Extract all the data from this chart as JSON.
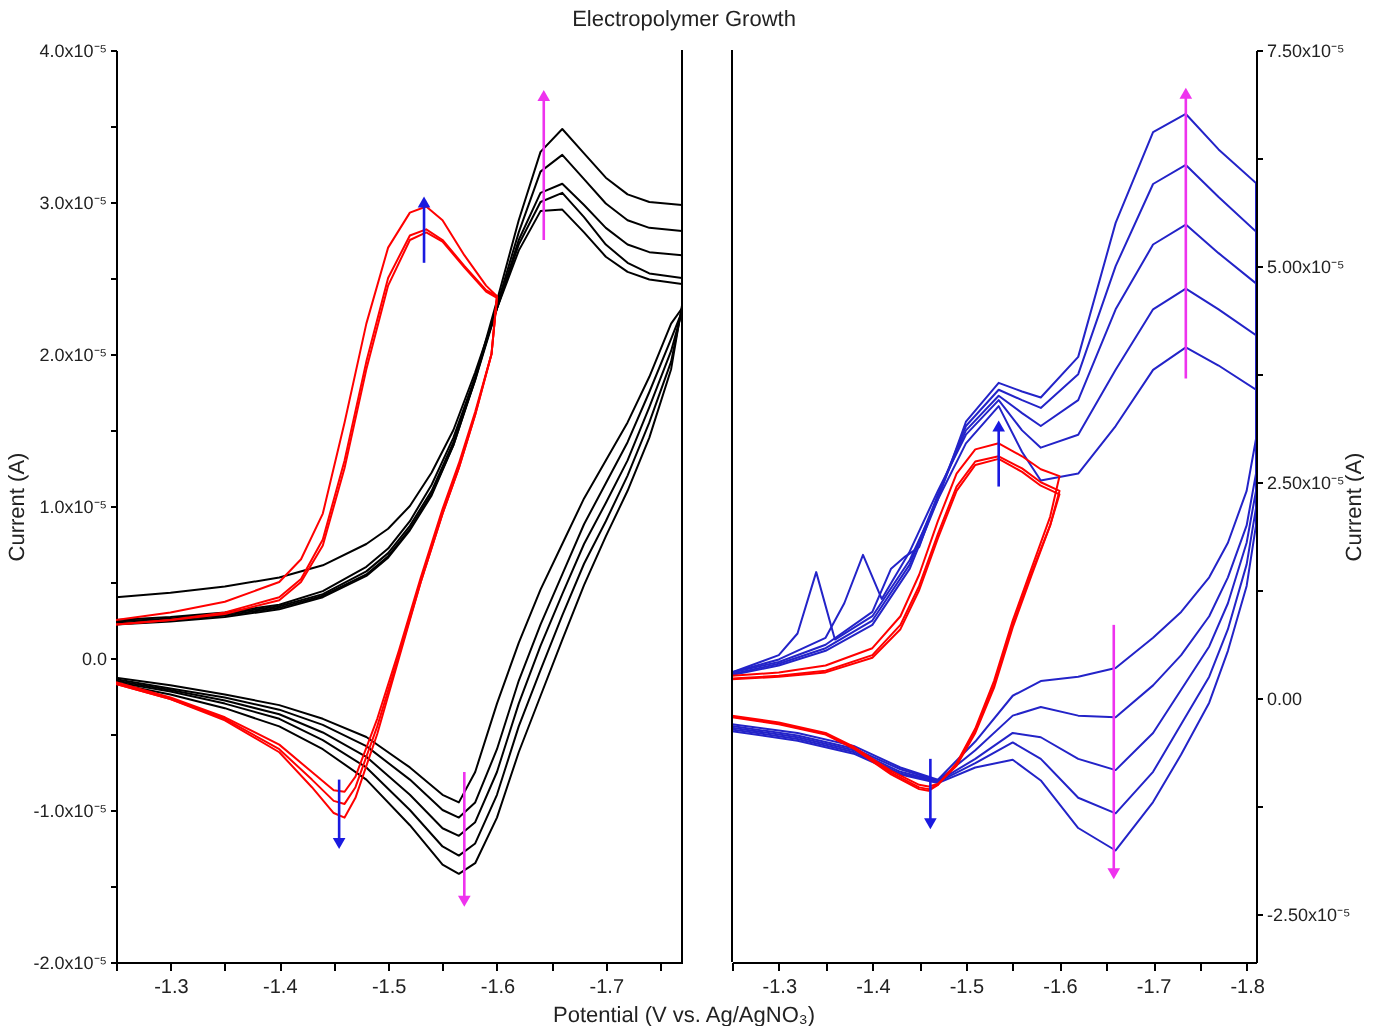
{
  "chart_data": [
    {
      "type": "line",
      "title": "Electropolymer Growth",
      "xlabel": "Potential (V vs. Ag/AgNO₃)",
      "ylabel": "Current (A)",
      "xlim": [
        -1.25,
        -1.77
      ],
      "xticks": [
        {
          "value": -1.25,
          "label": null
        },
        -1.3,
        {
          "value": -1.35,
          "label": null
        },
        -1.4,
        {
          "value": -1.45,
          "label": null
        },
        -1.5,
        {
          "value": -1.55,
          "label": null
        },
        -1.6,
        {
          "value": -1.65,
          "label": null
        },
        -1.7,
        {
          "value": -1.75,
          "label": null
        }
      ],
      "ylim": [
        -2e-05,
        4e-05
      ],
      "yticks": [
        {
          "value": -2e-05,
          "label": "-2.0x10⁻⁵"
        },
        {
          "value": -1.5e-05,
          "label": null
        },
        {
          "value": -1e-05,
          "label": "-1.0x10⁻⁵"
        },
        {
          "value": -5e-06,
          "label": null
        },
        {
          "value": 0,
          "label": "0.0"
        },
        {
          "value": 5e-06,
          "label": null
        },
        {
          "value": 1e-05,
          "label": "1.0x10⁻⁵"
        },
        {
          "value": 1.5e-05,
          "label": null
        },
        {
          "value": 2e-05,
          "label": "2.0x10⁻⁵"
        },
        {
          "value": 2.5e-05,
          "label": null
        },
        {
          "value": 3e-05,
          "label": "3.0x10⁻⁵"
        },
        {
          "value": 3.5e-05,
          "label": null
        },
        {
          "value": 4e-05,
          "label": "4.0x10⁻⁵"
        }
      ],
      "series": [
        {
          "color": "#000000",
          "x": [
            -1.25,
            -1.3,
            -1.35,
            -1.4,
            -1.44,
            -1.48,
            -1.5,
            -1.52,
            -1.54,
            -1.56,
            -1.58,
            -1.6,
            -1.62,
            -1.64,
            -1.66,
            -1.68,
            -1.7,
            -1.72,
            -1.74,
            -1.77,
            -1.77,
            -1.76,
            -1.74,
            -1.72,
            -1.7,
            -1.68,
            -1.66,
            -1.64,
            -1.62,
            -1.6,
            -1.58,
            -1.565,
            -1.55,
            -1.52,
            -1.48,
            -1.44,
            -1.4,
            -1.35,
            -1.3,
            -1.25
          ],
          "values": [
            4e-06,
            4.3e-06,
            4.7e-06,
            5.3e-06,
            6.1e-06,
            7.5e-06,
            8.5e-06,
            1e-05,
            1.22e-05,
            1.5e-05,
            1.88e-05,
            2.3e-05,
            2.68e-05,
            2.94e-05,
            2.95e-05,
            2.8e-05,
            2.64e-05,
            2.54e-05,
            2.49e-05,
            2.46e-05,
            2.3e-05,
            2.2e-05,
            1.85e-05,
            1.55e-05,
            1.3e-05,
            1.05e-05,
            7.5e-06,
            4.5e-06,
            1e-06,
            -3e-06,
            -7.5e-06,
            -9.5e-06,
            -9e-06,
            -7.2e-06,
            -5.2e-06,
            -4e-06,
            -3.1e-06,
            -2.4e-06,
            -1.8e-06,
            -1.3e-06
          ]
        },
        {
          "color": "#000000",
          "x": [
            -1.25,
            -1.3,
            -1.35,
            -1.4,
            -1.44,
            -1.48,
            -1.5,
            -1.52,
            -1.54,
            -1.56,
            -1.58,
            -1.6,
            -1.62,
            -1.64,
            -1.66,
            -1.68,
            -1.7,
            -1.72,
            -1.74,
            -1.77,
            -1.77,
            -1.76,
            -1.74,
            -1.72,
            -1.7,
            -1.68,
            -1.66,
            -1.64,
            -1.62,
            -1.6,
            -1.58,
            -1.565,
            -1.55,
            -1.52,
            -1.48,
            -1.44,
            -1.4,
            -1.35,
            -1.3,
            -1.25
          ],
          "values": [
            2.5e-06,
            2.7e-06,
            3e-06,
            3.5e-06,
            4.4e-06,
            6e-06,
            7.2e-06,
            9e-06,
            1.14e-05,
            1.45e-05,
            1.85e-05,
            2.3e-05,
            2.72e-05,
            3e-05,
            3.06e-05,
            2.9e-05,
            2.72e-05,
            2.6e-05,
            2.53e-05,
            2.5e-05,
            2.28e-05,
            2.1e-05,
            1.75e-05,
            1.42e-05,
            1.15e-05,
            8.8e-06,
            5.5e-06,
            2.2e-06,
            -1.5e-06,
            -6e-06,
            -9.5e-06,
            -1.05e-05,
            -1e-05,
            -8e-06,
            -5.8e-06,
            -4.4e-06,
            -3.4e-06,
            -2.6e-06,
            -2e-06,
            -1.4e-06
          ]
        },
        {
          "color": "#000000",
          "x": [
            -1.25,
            -1.3,
            -1.35,
            -1.4,
            -1.44,
            -1.48,
            -1.5,
            -1.52,
            -1.54,
            -1.56,
            -1.58,
            -1.6,
            -1.62,
            -1.64,
            -1.66,
            -1.68,
            -1.7,
            -1.72,
            -1.74,
            -1.77,
            -1.77,
            -1.76,
            -1.74,
            -1.72,
            -1.7,
            -1.68,
            -1.66,
            -1.64,
            -1.62,
            -1.6,
            -1.58,
            -1.565,
            -1.55,
            -1.52,
            -1.48,
            -1.44,
            -1.4,
            -1.35,
            -1.3,
            -1.25
          ],
          "values": [
            2.4e-06,
            2.6e-06,
            2.9e-06,
            3.4e-06,
            4.2e-06,
            5.7e-06,
            6.9e-06,
            8.7e-06,
            1.1e-05,
            1.42e-05,
            1.83e-05,
            2.3e-05,
            2.75e-05,
            3.06e-05,
            3.12e-05,
            2.98e-05,
            2.83e-05,
            2.72e-05,
            2.67e-05,
            2.65e-05,
            2.28e-05,
            2.02e-05,
            1.65e-05,
            1.3e-05,
            1.02e-05,
            7.5e-06,
            4.2e-06,
            8e-07,
            -3e-06,
            -7.5e-06,
            -1.08e-05,
            -1.17e-05,
            -1.12e-05,
            -9e-06,
            -6.5e-06,
            -4.9e-06,
            -3.7e-06,
            -2.8e-06,
            -2.1e-06,
            -1.5e-06
          ]
        },
        {
          "color": "#000000",
          "x": [
            -1.25,
            -1.3,
            -1.35,
            -1.4,
            -1.44,
            -1.48,
            -1.5,
            -1.52,
            -1.54,
            -1.56,
            -1.58,
            -1.6,
            -1.62,
            -1.64,
            -1.66,
            -1.68,
            -1.7,
            -1.72,
            -1.74,
            -1.77,
            -1.77,
            -1.76,
            -1.74,
            -1.72,
            -1.7,
            -1.68,
            -1.66,
            -1.64,
            -1.62,
            -1.6,
            -1.58,
            -1.565,
            -1.55,
            -1.52,
            -1.48,
            -1.44,
            -1.4,
            -1.35,
            -1.3,
            -1.25
          ],
          "values": [
            2.3e-06,
            2.5e-06,
            2.8e-06,
            3.3e-06,
            4.1e-06,
            5.5e-06,
            6.7e-06,
            8.5e-06,
            1.08e-05,
            1.4e-05,
            1.83e-05,
            2.32e-05,
            2.8e-05,
            3.2e-05,
            3.31e-05,
            3.15e-05,
            2.99e-05,
            2.88e-05,
            2.83e-05,
            2.81e-05,
            2.3e-05,
            1.95e-05,
            1.55e-05,
            1.2e-05,
            9e-06,
            6.2e-06,
            2.8e-06,
            -8e-07,
            -4.5e-06,
            -9e-06,
            -1.22e-05,
            -1.3e-05,
            -1.24e-05,
            -1e-05,
            -7.2e-06,
            -5.4e-06,
            -4e-06,
            -3e-06,
            -2.2e-06,
            -1.6e-06
          ]
        },
        {
          "color": "#000000",
          "x": [
            -1.25,
            -1.3,
            -1.35,
            -1.4,
            -1.44,
            -1.48,
            -1.5,
            -1.52,
            -1.54,
            -1.56,
            -1.58,
            -1.6,
            -1.62,
            -1.64,
            -1.66,
            -1.68,
            -1.7,
            -1.72,
            -1.74,
            -1.77,
            -1.77,
            -1.76,
            -1.74,
            -1.72,
            -1.7,
            -1.68,
            -1.66,
            -1.64,
            -1.62,
            -1.6,
            -1.58,
            -1.565,
            -1.55,
            -1.52,
            -1.48,
            -1.44,
            -1.4,
            -1.35,
            -1.3,
            -1.25
          ],
          "values": [
            2.2e-06,
            2.4e-06,
            2.7e-06,
            3.2e-06,
            4e-06,
            5.4e-06,
            6.6e-06,
            8.4e-06,
            1.07e-05,
            1.4e-05,
            1.84e-05,
            2.35e-05,
            2.88e-05,
            3.33e-05,
            3.48e-05,
            3.32e-05,
            3.16e-05,
            3.05e-05,
            3e-05,
            2.98e-05,
            2.32e-05,
            1.9e-05,
            1.45e-05,
            1.1e-05,
            8e-06,
            4.8e-06,
            1.2e-06,
            -2.5e-06,
            -6.2e-06,
            -1.05e-05,
            -1.35e-05,
            -1.42e-05,
            -1.36e-05,
            -1.1e-05,
            -8e-06,
            -6e-06,
            -4.5e-06,
            -3.3e-06,
            -2.4e-06,
            -1.7e-06
          ]
        },
        {
          "color": "#ff0000",
          "x": [
            -1.25,
            -1.3,
            -1.35,
            -1.4,
            -1.42,
            -1.44,
            -1.46,
            -1.48,
            -1.5,
            -1.52,
            -1.535,
            -1.55,
            -1.57,
            -1.59,
            -1.6,
            -1.6,
            -1.595,
            -1.58,
            -1.565,
            -1.55,
            -1.53,
            -1.51,
            -1.49,
            -1.47,
            -1.46,
            -1.45,
            -1.43,
            -1.4,
            -1.35,
            -1.3,
            -1.25
          ],
          "values": [
            2.5e-06,
            3e-06,
            3.7e-06,
            5e-06,
            6.5e-06,
            9.5e-06,
            1.55e-05,
            2.2e-05,
            2.7e-05,
            2.93e-05,
            2.97e-05,
            2.88e-05,
            2.65e-05,
            2.45e-05,
            2.38e-05,
            2.38e-05,
            2e-05,
            1.6e-05,
            1.25e-05,
            9.5e-06,
            5e-06,
            0,
            -5e-06,
            -9.2e-06,
            -1.05e-05,
            -1.02e-05,
            -8.5e-06,
            -6.2e-06,
            -4.1e-06,
            -2.7e-06,
            -1.7e-06
          ]
        },
        {
          "color": "#ff0000",
          "x": [
            -1.25,
            -1.3,
            -1.35,
            -1.4,
            -1.42,
            -1.44,
            -1.46,
            -1.48,
            -1.5,
            -1.52,
            -1.535,
            -1.55,
            -1.57,
            -1.59,
            -1.6,
            -1.6,
            -1.595,
            -1.58,
            -1.565,
            -1.55,
            -1.53,
            -1.51,
            -1.49,
            -1.47,
            -1.46,
            -1.45,
            -1.43,
            -1.4,
            -1.35,
            -1.3,
            -1.25
          ],
          "values": [
            2.2e-06,
            2.5e-06,
            3e-06,
            4e-06,
            5.2e-06,
            7.8e-06,
            1.3e-05,
            1.95e-05,
            2.5e-05,
            2.78e-05,
            2.82e-05,
            2.75e-05,
            2.58e-05,
            2.42e-05,
            2.38e-05,
            2.38e-05,
            2e-05,
            1.6e-05,
            1.25e-05,
            9.5e-06,
            5e-06,
            2e-07,
            -4.5e-06,
            -8.5e-06,
            -9.6e-06,
            -9.4e-06,
            -8e-06,
            -6e-06,
            -4e-06,
            -2.7e-06,
            -1.7e-06
          ]
        },
        {
          "color": "#ff0000",
          "x": [
            -1.25,
            -1.3,
            -1.35,
            -1.4,
            -1.42,
            -1.44,
            -1.46,
            -1.48,
            -1.5,
            -1.52,
            -1.535,
            -1.55,
            -1.57,
            -1.59,
            -1.6,
            -1.6,
            -1.595,
            -1.58,
            -1.565,
            -1.55,
            -1.53,
            -1.51,
            -1.49,
            -1.47,
            -1.46,
            -1.45,
            -1.43,
            -1.4,
            -1.35,
            -1.3,
            -1.25
          ],
          "values": [
            2.2e-06,
            2.5e-06,
            2.9e-06,
            3.8e-06,
            5e-06,
            7.4e-06,
            1.25e-05,
            1.9e-05,
            2.45e-05,
            2.75e-05,
            2.8e-05,
            2.74e-05,
            2.57e-05,
            2.41e-05,
            2.37e-05,
            2.37e-05,
            2e-05,
            1.62e-05,
            1.28e-05,
            9.8e-06,
            5.3e-06,
            5e-07,
            -4e-06,
            -7.8e-06,
            -8.8e-06,
            -8.7e-06,
            -7.5e-06,
            -5.7e-06,
            -3.9e-06,
            -2.6e-06,
            -1.6e-06
          ]
        }
      ]
    },
    {
      "type": "line",
      "y2label": "Current (A)",
      "xlim": [
        -1.25,
        -1.81
      ],
      "xticks": [
        {
          "value": -1.25,
          "label": null
        },
        -1.3,
        {
          "value": -1.35,
          "label": null
        },
        -1.4,
        {
          "value": -1.45,
          "label": null
        },
        -1.5,
        {
          "value": -1.55,
          "label": null
        },
        -1.6,
        {
          "value": -1.65,
          "label": null
        },
        -1.7,
        {
          "value": -1.75,
          "label": null
        },
        -1.8
      ],
      "y2lim": [
        -3.05e-05,
        7.5e-05
      ],
      "y2ticks": [
        {
          "value": -2.5e-05,
          "label": "-2.50x10⁻⁵"
        },
        {
          "value": -1.25e-05,
          "label": null
        },
        {
          "value": 0,
          "label": "0.00"
        },
        {
          "value": 1.25e-05,
          "label": null
        },
        {
          "value": 2.5e-05,
          "label": "2.50x10⁻⁵"
        },
        {
          "value": 3.75e-05,
          "label": null
        },
        {
          "value": 5e-05,
          "label": "5.00x10⁻⁵"
        },
        {
          "value": 6.25e-05,
          "label": null
        },
        {
          "value": 7.5e-05,
          "label": "7.50x10⁻⁵"
        }
      ],
      "series": [
        {
          "axis": "y2",
          "color": "#2323c8",
          "x": [
            -1.25,
            -1.3,
            -1.32,
            -1.34,
            -1.36,
            -1.4,
            -1.44,
            -1.47,
            -1.5,
            -1.535,
            -1.56,
            -1.58,
            -1.62,
            -1.66,
            -1.7,
            -1.735,
            -1.77,
            -1.81,
            -1.81,
            -1.8,
            -1.78,
            -1.76,
            -1.73,
            -1.7,
            -1.66,
            -1.62,
            -1.58,
            -1.55,
            -1.51,
            -1.47,
            -1.43,
            -1.38,
            -1.32,
            -1.25
          ],
          "values": [
            3e-06,
            5e-06,
            7.5e-06,
            1.46e-05,
            6.8e-06,
            9.5e-06,
            1.6e-05,
            2.3e-05,
            2.95e-05,
            3.38e-05,
            2.85e-05,
            2.52e-05,
            2.6e-05,
            3.15e-05,
            3.8e-05,
            4.06e-05,
            3.85e-05,
            3.57e-05,
            3e-05,
            2.4e-05,
            1.8e-05,
            1.4e-05,
            1e-05,
            7e-06,
            3.5e-06,
            2.5e-06,
            2e-06,
            3e-07,
            -5e-06,
            -9.4e-06,
            -8e-06,
            -5.5e-06,
            -4e-06,
            -3e-06
          ]
        },
        {
          "axis": "y2",
          "color": "#2323c8",
          "x": [
            -1.25,
            -1.3,
            -1.35,
            -1.37,
            -1.39,
            -1.41,
            -1.44,
            -1.47,
            -1.5,
            -1.535,
            -1.56,
            -1.58,
            -1.62,
            -1.66,
            -1.7,
            -1.735,
            -1.77,
            -1.81,
            -1.81,
            -1.8,
            -1.78,
            -1.76,
            -1.73,
            -1.7,
            -1.66,
            -1.62,
            -1.58,
            -1.55,
            -1.51,
            -1.47,
            -1.43,
            -1.38,
            -1.32,
            -1.25
          ],
          "values": [
            3e-06,
            4.5e-06,
            7e-06,
            1.1e-05,
            1.66e-05,
            1.15e-05,
            1.7e-05,
            2.4e-05,
            3.05e-05,
            3.45e-05,
            3.1e-05,
            2.9e-05,
            3.05e-05,
            3.8e-05,
            4.5e-05,
            4.74e-05,
            4.5e-05,
            4.2e-05,
            2.6e-05,
            2e-05,
            1.4e-05,
            9.5e-06,
            5e-06,
            1.5e-06,
            -2.2e-06,
            -2e-06,
            -1e-06,
            -2e-06,
            -6e-06,
            -9.5e-06,
            -8.2e-06,
            -5.8e-06,
            -4.3e-06,
            -3.2e-06
          ]
        },
        {
          "axis": "y2",
          "color": "#2323c8",
          "x": [
            -1.25,
            -1.3,
            -1.35,
            -1.4,
            -1.42,
            -1.435,
            -1.45,
            -1.47,
            -1.5,
            -1.535,
            -1.56,
            -1.58,
            -1.62,
            -1.66,
            -1.7,
            -1.735,
            -1.77,
            -1.81,
            -1.81,
            -1.8,
            -1.78,
            -1.76,
            -1.73,
            -1.7,
            -1.66,
            -1.62,
            -1.58,
            -1.55,
            -1.51,
            -1.47,
            -1.43,
            -1.38,
            -1.32,
            -1.25
          ],
          "values": [
            3e-06,
            4.2e-06,
            6.2e-06,
            1e-05,
            1.5e-05,
            1.64e-05,
            1.75e-05,
            2.35e-05,
            3.1e-05,
            3.5e-05,
            3.3e-05,
            3.15e-05,
            3.45e-05,
            4.5e-05,
            5.25e-05,
            5.48e-05,
            5.15e-05,
            4.8e-05,
            2.4e-05,
            1.8e-05,
            1.1e-05,
            6e-06,
            1e-06,
            -4e-06,
            -8.3e-06,
            -7e-06,
            -4.5e-06,
            -4e-06,
            -7e-06,
            -9.6e-06,
            -8.5e-06,
            -6e-06,
            -4.5e-06,
            -3.4e-06
          ]
        },
        {
          "axis": "y2",
          "color": "#2323c8",
          "x": [
            -1.25,
            -1.3,
            -1.35,
            -1.4,
            -1.44,
            -1.47,
            -1.5,
            -1.535,
            -1.56,
            -1.58,
            -1.62,
            -1.66,
            -1.7,
            -1.735,
            -1.77,
            -1.81,
            -1.81,
            -1.8,
            -1.78,
            -1.76,
            -1.73,
            -1.7,
            -1.66,
            -1.62,
            -1.58,
            -1.55,
            -1.51,
            -1.47,
            -1.43,
            -1.38,
            -1.32,
            -1.25
          ],
          "values": [
            2.8e-06,
            4e-06,
            5.8e-06,
            9e-06,
            1.55e-05,
            2.35e-05,
            3.15e-05,
            3.57e-05,
            3.45e-05,
            3.36e-05,
            3.75e-05,
            5e-05,
            5.95e-05,
            6.17e-05,
            5.8e-05,
            5.4e-05,
            2.2e-05,
            1.55e-05,
            8e-06,
            2.5e-06,
            -3e-06,
            -8.5e-06,
            -1.33e-05,
            -1.15e-05,
            -7e-06,
            -5.1e-06,
            -7.5e-06,
            -9.7e-06,
            -8.7e-06,
            -6.2e-06,
            -4.7e-06,
            -3.6e-06
          ]
        },
        {
          "axis": "y2",
          "color": "#2323c8",
          "x": [
            -1.25,
            -1.3,
            -1.35,
            -1.4,
            -1.44,
            -1.47,
            -1.5,
            -1.535,
            -1.56,
            -1.58,
            -1.62,
            -1.66,
            -1.7,
            -1.735,
            -1.77,
            -1.81,
            -1.81,
            -1.8,
            -1.78,
            -1.76,
            -1.73,
            -1.7,
            -1.66,
            -1.62,
            -1.58,
            -1.55,
            -1.51,
            -1.47,
            -1.43,
            -1.38,
            -1.32,
            -1.25
          ],
          "values": [
            2.7e-06,
            3.8e-06,
            5.5e-06,
            8.5e-06,
            1.5e-05,
            2.3e-05,
            3.2e-05,
            3.65e-05,
            3.55e-05,
            3.48e-05,
            3.95e-05,
            5.5e-05,
            6.55e-05,
            6.76e-05,
            6.35e-05,
            5.96e-05,
            2e-05,
            1.3e-05,
            5.5e-06,
            -5e-07,
            -6.5e-06,
            -1.2e-05,
            -1.76e-05,
            -1.5e-05,
            -9.5e-06,
            -7.1e-06,
            -8e-06,
            -9.8e-06,
            -8.8e-06,
            -6.4e-06,
            -4.9e-06,
            -3.8e-06
          ]
        },
        {
          "axis": "y2",
          "color": "#ff0000",
          "x": [
            -1.25,
            -1.3,
            -1.35,
            -1.4,
            -1.43,
            -1.45,
            -1.47,
            -1.49,
            -1.51,
            -1.535,
            -1.56,
            -1.58,
            -1.6,
            -1.6,
            -1.59,
            -1.57,
            -1.55,
            -1.53,
            -1.51,
            -1.49,
            -1.47,
            -1.46,
            -1.45,
            -1.42,
            -1.38,
            -1.35,
            -1.3,
            -1.25
          ],
          "values": [
            2.6e-06,
            3e-06,
            3.8e-06,
            5.8e-06,
            9.5e-06,
            1.43e-05,
            2.05e-05,
            2.6e-05,
            2.88e-05,
            2.95e-05,
            2.8e-05,
            2.65e-05,
            2.57e-05,
            2.57e-05,
            2.1e-05,
            1.5e-05,
            9e-06,
            2e-06,
            -3.5e-06,
            -7.5e-06,
            -1e-05,
            -1.07e-05,
            -1.05e-05,
            -8.8e-06,
            -5.8e-06,
            -4.2e-06,
            -3e-06,
            -2.2e-06
          ]
        },
        {
          "axis": "y2",
          "color": "#ff0000",
          "x": [
            -1.25,
            -1.3,
            -1.35,
            -1.4,
            -1.43,
            -1.45,
            -1.47,
            -1.49,
            -1.51,
            -1.535,
            -1.56,
            -1.58,
            -1.6,
            -1.6,
            -1.59,
            -1.57,
            -1.55,
            -1.53,
            -1.51,
            -1.49,
            -1.47,
            -1.46,
            -1.45,
            -1.42,
            -1.38,
            -1.35,
            -1.3,
            -1.25
          ],
          "values": [
            2.3e-06,
            2.6e-06,
            3.2e-06,
            5e-06,
            8.5e-06,
            1.3e-05,
            1.9e-05,
            2.45e-05,
            2.74e-05,
            2.8e-05,
            2.66e-05,
            2.5e-05,
            2.4e-05,
            2.4e-05,
            2e-05,
            1.45e-05,
            8.5e-06,
            1.5e-06,
            -3.8e-06,
            -7.6e-06,
            -1e-05,
            -1.05e-05,
            -1.03e-05,
            -8.6e-06,
            -5.7e-06,
            -4.1e-06,
            -2.9e-06,
            -2.1e-06
          ]
        },
        {
          "axis": "y2",
          "color": "#ff0000",
          "x": [
            -1.25,
            -1.3,
            -1.35,
            -1.4,
            -1.43,
            -1.45,
            -1.47,
            -1.49,
            -1.51,
            -1.535,
            -1.56,
            -1.58,
            -1.6,
            -1.6,
            -1.59,
            -1.57,
            -1.55,
            -1.53,
            -1.51,
            -1.49,
            -1.47,
            -1.46,
            -1.45,
            -1.42,
            -1.38,
            -1.35,
            -1.3,
            -1.25
          ],
          "values": [
            2.2e-06,
            2.5e-06,
            3e-06,
            4.7e-06,
            8e-06,
            1.25e-05,
            1.85e-05,
            2.4e-05,
            2.7e-05,
            2.77e-05,
            2.62e-05,
            2.46e-05,
            2.36e-05,
            2.36e-05,
            2e-05,
            1.42e-05,
            8.2e-06,
            1.2e-06,
            -4e-06,
            -7.8e-06,
            -9.9e-06,
            -1.02e-05,
            -1e-05,
            -8.4e-06,
            -5.6e-06,
            -4e-06,
            -2.8e-06,
            -2e-06
          ]
        }
      ]
    }
  ]
}
